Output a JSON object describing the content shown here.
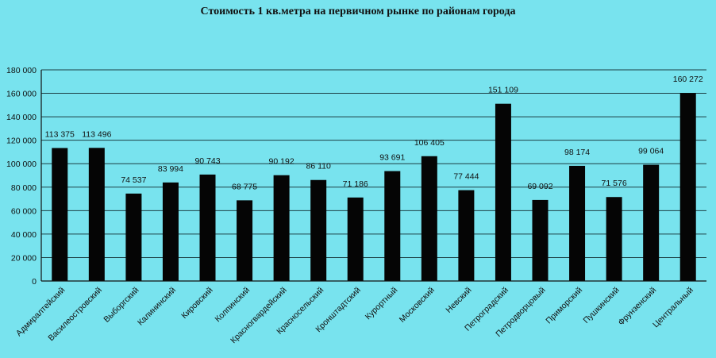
{
  "chart_data": {
    "type": "bar",
    "title": "Стоимость 1 кв.метра на первичном  рынке по районам  города",
    "xlabel": "",
    "ylabel": "",
    "ylim": [
      0,
      180000
    ],
    "ytick_step": 20000,
    "y_ticks": [
      "0",
      "20 000",
      "40 000",
      "60 000",
      "80 000",
      "100 000",
      "120 000",
      "140 000",
      "160 000",
      "180 000"
    ],
    "grid": true,
    "legend": "none",
    "categories": [
      "Адмиралтейский",
      "Василеостровский",
      "Выборгский",
      "Калининский",
      "Кировский",
      "Колпинский",
      "Красногвардейский",
      "Красносельский",
      "Кронштадтский",
      "Курортный",
      "Московский",
      "Невский",
      "Петроградский",
      "Петродворцовый",
      "Приморский",
      "Пушкинский",
      "Фрунзенский",
      "Центральный"
    ],
    "values": [
      113375,
      113496,
      74537,
      83994,
      90743,
      68775,
      90192,
      86110,
      71186,
      93691,
      106405,
      77444,
      151109,
      69092,
      98174,
      71576,
      99064,
      160272
    ],
    "value_labels": [
      "113 375",
      "113 496",
      "74 537",
      "83 994",
      "90 743",
      "68 775",
      "90 192",
      "86 110",
      "71 186",
      "93 691",
      "106 405",
      "77 444",
      "151 109",
      "69 092",
      "98 174",
      "71 576",
      "99 064",
      "160 272"
    ],
    "colors": {
      "background": "#78e3ee",
      "bar": "#050505",
      "grid": "#1c3f44",
      "text": "#111111"
    }
  }
}
